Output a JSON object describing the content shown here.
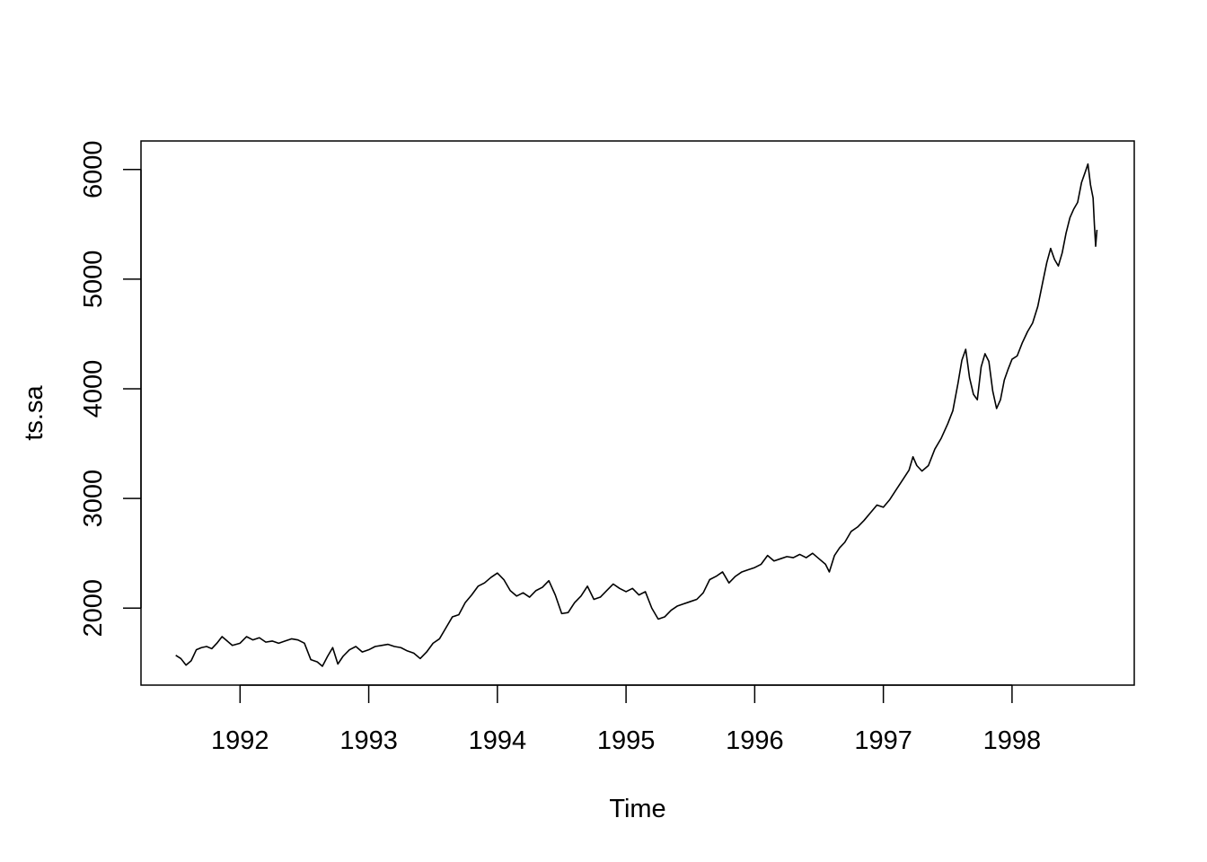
{
  "chart_data": {
    "type": "line",
    "title": "",
    "xlabel": "Time",
    "ylabel": "ts.sa",
    "xlim": [
      1991.23,
      1998.95
    ],
    "ylim": [
      1298,
      6260
    ],
    "x_ticks": [
      1992,
      1993,
      1994,
      1995,
      1996,
      1997,
      1998
    ],
    "x_tick_labels": [
      "1992",
      "1993",
      "1994",
      "1995",
      "1996",
      "1997",
      "1998"
    ],
    "y_ticks": [
      2000,
      3000,
      4000,
      5000,
      6000
    ],
    "y_tick_labels": [
      "2000",
      "3000",
      "4000",
      "5000",
      "6000"
    ],
    "grid": false,
    "legend": "none",
    "series": [
      {
        "color": "#000000",
        "points": [
          [
            1991.5,
            1570
          ],
          [
            1991.54,
            1540
          ],
          [
            1991.58,
            1480
          ],
          [
            1991.62,
            1520
          ],
          [
            1991.66,
            1620
          ],
          [
            1991.7,
            1640
          ],
          [
            1991.74,
            1650
          ],
          [
            1991.78,
            1630
          ],
          [
            1991.82,
            1680
          ],
          [
            1991.86,
            1740
          ],
          [
            1991.9,
            1700
          ],
          [
            1991.94,
            1660
          ],
          [
            1992.0,
            1680
          ],
          [
            1992.05,
            1740
          ],
          [
            1992.1,
            1710
          ],
          [
            1992.15,
            1730
          ],
          [
            1992.2,
            1690
          ],
          [
            1992.25,
            1700
          ],
          [
            1992.3,
            1680
          ],
          [
            1992.35,
            1700
          ],
          [
            1992.4,
            1720
          ],
          [
            1992.45,
            1710
          ],
          [
            1992.5,
            1680
          ],
          [
            1992.55,
            1530
          ],
          [
            1992.6,
            1510
          ],
          [
            1992.64,
            1470
          ],
          [
            1992.68,
            1560
          ],
          [
            1992.72,
            1640
          ],
          [
            1992.76,
            1490
          ],
          [
            1992.8,
            1560
          ],
          [
            1992.85,
            1620
          ],
          [
            1992.9,
            1650
          ],
          [
            1992.95,
            1600
          ],
          [
            1993.0,
            1620
          ],
          [
            1993.05,
            1650
          ],
          [
            1993.1,
            1660
          ],
          [
            1993.15,
            1670
          ],
          [
            1993.2,
            1650
          ],
          [
            1993.25,
            1640
          ],
          [
            1993.3,
            1610
          ],
          [
            1993.35,
            1590
          ],
          [
            1993.4,
            1540
          ],
          [
            1993.45,
            1600
          ],
          [
            1993.5,
            1680
          ],
          [
            1993.55,
            1720
          ],
          [
            1993.6,
            1820
          ],
          [
            1993.65,
            1920
          ],
          [
            1993.7,
            1940
          ],
          [
            1993.75,
            2050
          ],
          [
            1993.8,
            2120
          ],
          [
            1993.85,
            2200
          ],
          [
            1993.9,
            2230
          ],
          [
            1993.95,
            2280
          ],
          [
            1994.0,
            2320
          ],
          [
            1994.05,
            2260
          ],
          [
            1994.1,
            2160
          ],
          [
            1994.15,
            2110
          ],
          [
            1994.2,
            2140
          ],
          [
            1994.25,
            2100
          ],
          [
            1994.3,
            2160
          ],
          [
            1994.35,
            2190
          ],
          [
            1994.4,
            2250
          ],
          [
            1994.45,
            2120
          ],
          [
            1994.5,
            1950
          ],
          [
            1994.55,
            1960
          ],
          [
            1994.6,
            2050
          ],
          [
            1994.65,
            2110
          ],
          [
            1994.7,
            2200
          ],
          [
            1994.75,
            2080
          ],
          [
            1994.8,
            2100
          ],
          [
            1994.85,
            2160
          ],
          [
            1994.9,
            2220
          ],
          [
            1994.95,
            2180
          ],
          [
            1995.0,
            2150
          ],
          [
            1995.05,
            2180
          ],
          [
            1995.1,
            2120
          ],
          [
            1995.15,
            2150
          ],
          [
            1995.2,
            2000
          ],
          [
            1995.25,
            1900
          ],
          [
            1995.3,
            1920
          ],
          [
            1995.35,
            1980
          ],
          [
            1995.4,
            2020
          ],
          [
            1995.45,
            2040
          ],
          [
            1995.5,
            2060
          ],
          [
            1995.55,
            2080
          ],
          [
            1995.6,
            2140
          ],
          [
            1995.65,
            2260
          ],
          [
            1995.7,
            2290
          ],
          [
            1995.75,
            2330
          ],
          [
            1995.8,
            2230
          ],
          [
            1995.85,
            2290
          ],
          [
            1995.9,
            2330
          ],
          [
            1995.95,
            2350
          ],
          [
            1996.0,
            2370
          ],
          [
            1996.05,
            2400
          ],
          [
            1996.1,
            2480
          ],
          [
            1996.15,
            2430
          ],
          [
            1996.2,
            2450
          ],
          [
            1996.25,
            2470
          ],
          [
            1996.3,
            2460
          ],
          [
            1996.35,
            2490
          ],
          [
            1996.4,
            2460
          ],
          [
            1996.45,
            2500
          ],
          [
            1996.5,
            2450
          ],
          [
            1996.55,
            2400
          ],
          [
            1996.58,
            2330
          ],
          [
            1996.62,
            2480
          ],
          [
            1996.66,
            2550
          ],
          [
            1996.7,
            2600
          ],
          [
            1996.75,
            2700
          ],
          [
            1996.8,
            2740
          ],
          [
            1996.85,
            2800
          ],
          [
            1996.9,
            2870
          ],
          [
            1996.95,
            2940
          ],
          [
            1997.0,
            2920
          ],
          [
            1997.05,
            2990
          ],
          [
            1997.1,
            3080
          ],
          [
            1997.15,
            3170
          ],
          [
            1997.2,
            3260
          ],
          [
            1997.23,
            3380
          ],
          [
            1997.26,
            3300
          ],
          [
            1997.3,
            3250
          ],
          [
            1997.35,
            3300
          ],
          [
            1997.4,
            3450
          ],
          [
            1997.45,
            3550
          ],
          [
            1997.5,
            3680
          ],
          [
            1997.54,
            3800
          ],
          [
            1997.58,
            4050
          ],
          [
            1997.61,
            4260
          ],
          [
            1997.64,
            4360
          ],
          [
            1997.67,
            4100
          ],
          [
            1997.7,
            3950
          ],
          [
            1997.73,
            3900
          ],
          [
            1997.76,
            4200
          ],
          [
            1997.79,
            4320
          ],
          [
            1997.82,
            4250
          ],
          [
            1997.85,
            3980
          ],
          [
            1997.88,
            3820
          ],
          [
            1997.91,
            3900
          ],
          [
            1997.94,
            4080
          ],
          [
            1997.97,
            4180
          ],
          [
            1998.0,
            4270
          ],
          [
            1998.04,
            4300
          ],
          [
            1998.08,
            4420
          ],
          [
            1998.12,
            4520
          ],
          [
            1998.16,
            4600
          ],
          [
            1998.2,
            4750
          ],
          [
            1998.24,
            4980
          ],
          [
            1998.27,
            5150
          ],
          [
            1998.3,
            5280
          ],
          [
            1998.33,
            5180
          ],
          [
            1998.36,
            5120
          ],
          [
            1998.39,
            5240
          ],
          [
            1998.42,
            5420
          ],
          [
            1998.45,
            5560
          ],
          [
            1998.48,
            5640
          ],
          [
            1998.51,
            5700
          ],
          [
            1998.54,
            5880
          ],
          [
            1998.57,
            5980
          ],
          [
            1998.59,
            6050
          ],
          [
            1998.61,
            5860
          ],
          [
            1998.63,
            5740
          ],
          [
            1998.64,
            5500
          ],
          [
            1998.65,
            5300
          ],
          [
            1998.66,
            5450
          ]
        ]
      }
    ]
  }
}
